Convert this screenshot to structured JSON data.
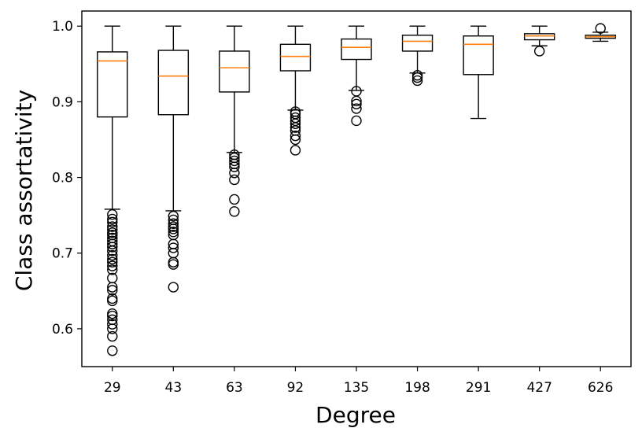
{
  "chart_data": {
    "type": "box",
    "title": "",
    "xlabel": "Degree",
    "ylabel": "Class assortativity",
    "ylim": [
      0.55,
      1.02
    ],
    "yticks": [
      0.6,
      0.7,
      0.8,
      0.9,
      1.0
    ],
    "ytick_labels": [
      "0.6",
      "0.7",
      "0.8",
      "0.9",
      "1.0"
    ],
    "categories": [
      "29",
      "43",
      "63",
      "92",
      "135",
      "198",
      "291",
      "427",
      "626"
    ],
    "grid": false,
    "colors": {
      "box": "#000000",
      "median": "#ff7f0e",
      "flier": "#000000"
    },
    "boxes": [
      {
        "category": "29",
        "whisker_low": 0.758,
        "q1": 0.88,
        "median": 0.954,
        "q3": 0.966,
        "whisker_high": 1.0,
        "outliers": [
          0.751,
          0.745,
          0.741,
          0.735,
          0.731,
          0.727,
          0.724,
          0.72,
          0.716,
          0.712,
          0.708,
          0.703,
          0.697,
          0.692,
          0.688,
          0.683,
          0.678,
          0.667,
          0.655,
          0.651,
          0.64,
          0.637,
          0.62,
          0.617,
          0.612,
          0.606,
          0.6,
          0.59,
          0.571
        ]
      },
      {
        "category": "43",
        "whisker_low": 0.756,
        "q1": 0.883,
        "median": 0.934,
        "q3": 0.968,
        "whisker_high": 1.0,
        "outliers": [
          0.749,
          0.744,
          0.739,
          0.735,
          0.732,
          0.728,
          0.724,
          0.712,
          0.707,
          0.7,
          0.688,
          0.685,
          0.655
        ]
      },
      {
        "category": "63",
        "whisker_low": 0.833,
        "q1": 0.913,
        "median": 0.945,
        "q3": 0.967,
        "whisker_high": 1.0,
        "outliers": [
          0.83,
          0.826,
          0.822,
          0.818,
          0.814,
          0.806,
          0.797,
          0.771,
          0.755
        ]
      },
      {
        "category": "92",
        "whisker_low": 0.889,
        "q1": 0.941,
        "median": 0.96,
        "q3": 0.976,
        "whisker_high": 1.0,
        "outliers": [
          0.887,
          0.884,
          0.879,
          0.875,
          0.871,
          0.866,
          0.862,
          0.855,
          0.85,
          0.836
        ]
      },
      {
        "category": "135",
        "whisker_low": 0.915,
        "q1": 0.956,
        "median": 0.972,
        "q3": 0.983,
        "whisker_high": 1.0,
        "outliers": [
          0.914,
          0.901,
          0.897,
          0.891,
          0.875
        ]
      },
      {
        "category": "198",
        "whisker_low": 0.938,
        "q1": 0.967,
        "median": 0.98,
        "q3": 0.988,
        "whisker_high": 1.0,
        "outliers": [
          0.935,
          0.932,
          0.928
        ]
      },
      {
        "category": "291",
        "whisker_low": 0.878,
        "q1": 0.936,
        "median": 0.976,
        "q3": 0.987,
        "whisker_high": 1.0,
        "outliers": []
      },
      {
        "category": "427",
        "whisker_low": 0.974,
        "q1": 0.982,
        "median": 0.987,
        "q3": 0.99,
        "whisker_high": 1.0,
        "outliers": [
          0.967
        ]
      },
      {
        "category": "626",
        "whisker_low": 0.98,
        "q1": 0.984,
        "median": 0.986,
        "q3": 0.988,
        "whisker_high": 0.992,
        "outliers": [
          0.997
        ]
      }
    ]
  }
}
